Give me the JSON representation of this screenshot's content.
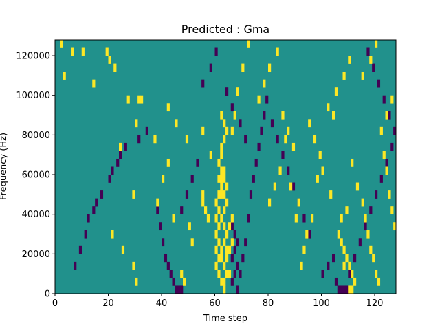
{
  "chart_data": {
    "type": "heatmap",
    "title": "Predicted : Gma",
    "xlabel": "Time step",
    "ylabel": "Frequency (Hz)",
    "xlim": [
      0,
      128
    ],
    "ylim": [
      0,
      128000
    ],
    "x_ticks": [
      0,
      20,
      40,
      60,
      80,
      100,
      120
    ],
    "y_ticks": [
      0,
      20000,
      40000,
      60000,
      80000,
      100000,
      120000
    ],
    "x_tick_labels": [
      "0",
      "20",
      "40",
      "60",
      "80",
      "100",
      "120"
    ],
    "y_tick_labels": [
      "0",
      "20000",
      "40000",
      "60000",
      "80000",
      "100000",
      "120000"
    ],
    "grid": false,
    "colormap": "viridis",
    "values_legend": {
      "low": -1,
      "mid": 0,
      "high": 1
    },
    "colors": {
      "low": "#440154",
      "mid": "#21918c",
      "high": "#fde725"
    },
    "grid_shape": {
      "time_bins": 128,
      "frequency_bins": 32,
      "bin_hz": 4000
    },
    "high_cells": [
      [
        2,
        31
      ],
      [
        10,
        30
      ],
      [
        19,
        30
      ],
      [
        27,
        24
      ],
      [
        31,
        24
      ],
      [
        32,
        24
      ],
      [
        37,
        19
      ],
      [
        42,
        23
      ],
      [
        42,
        16
      ],
      [
        49,
        19
      ],
      [
        20,
        29
      ],
      [
        30,
        21
      ],
      [
        45,
        21
      ],
      [
        55,
        20
      ],
      [
        58,
        17
      ],
      [
        55,
        11
      ],
      [
        44,
        9
      ],
      [
        38,
        11
      ],
      [
        22,
        28
      ],
      [
        3,
        27
      ],
      [
        6,
        30
      ],
      [
        14,
        26
      ],
      [
        24,
        18
      ],
      [
        29,
        12
      ],
      [
        40,
        14
      ],
      [
        50,
        8
      ],
      [
        51,
        6
      ],
      [
        47,
        2
      ],
      [
        48,
        1
      ],
      [
        30,
        1
      ],
      [
        29,
        3
      ],
      [
        25,
        5
      ],
      [
        21,
        7
      ],
      [
        62,
        17
      ],
      [
        63,
        15
      ],
      [
        64,
        13
      ],
      [
        60,
        11
      ],
      [
        61,
        10
      ],
      [
        60,
        9
      ],
      [
        61,
        8
      ],
      [
        60,
        7
      ],
      [
        61,
        6
      ],
      [
        60,
        5
      ],
      [
        61,
        4
      ],
      [
        60,
        3
      ],
      [
        61,
        2
      ],
      [
        62,
        1
      ],
      [
        63,
        0
      ],
      [
        62,
        5
      ],
      [
        63,
        6
      ],
      [
        64,
        7
      ],
      [
        63,
        8
      ],
      [
        62,
        9
      ],
      [
        63,
        10
      ],
      [
        64,
        11
      ],
      [
        61,
        12
      ],
      [
        62,
        12
      ],
      [
        63,
        12
      ],
      [
        62,
        13
      ],
      [
        61,
        14
      ],
      [
        62,
        14
      ],
      [
        63,
        14
      ],
      [
        62,
        15
      ],
      [
        61,
        16
      ],
      [
        62,
        18
      ],
      [
        63,
        19
      ],
      [
        64,
        20
      ],
      [
        63,
        21
      ],
      [
        62,
        22
      ],
      [
        62,
        4
      ],
      [
        63,
        3
      ],
      [
        64,
        2
      ],
      [
        63,
        1
      ],
      [
        65,
        5
      ],
      [
        65,
        8
      ],
      [
        66,
        6
      ],
      [
        66,
        9
      ],
      [
        64,
        4
      ],
      [
        64,
        5
      ],
      [
        65,
        2
      ],
      [
        55,
        12
      ],
      [
        56,
        10
      ],
      [
        57,
        9
      ],
      [
        66,
        20
      ],
      [
        67,
        22
      ],
      [
        68,
        25
      ],
      [
        70,
        28
      ],
      [
        72,
        31
      ],
      [
        80,
        11
      ],
      [
        82,
        13
      ],
      [
        84,
        15
      ],
      [
        86,
        19
      ],
      [
        88,
        13
      ],
      [
        90,
        9
      ],
      [
        91,
        11
      ],
      [
        92,
        3
      ],
      [
        93,
        5
      ],
      [
        94,
        7
      ],
      [
        96,
        9
      ],
      [
        98,
        14
      ],
      [
        100,
        15
      ],
      [
        103,
        12
      ],
      [
        105,
        25
      ],
      [
        108,
        27
      ],
      [
        110,
        29
      ],
      [
        111,
        16
      ],
      [
        113,
        13
      ],
      [
        115,
        11
      ],
      [
        116,
        9
      ],
      [
        117,
        7
      ],
      [
        118,
        5
      ],
      [
        119,
        4
      ],
      [
        120,
        2
      ],
      [
        121,
        1
      ],
      [
        106,
        7
      ],
      [
        107,
        6
      ],
      [
        108,
        5
      ],
      [
        109,
        4
      ],
      [
        110,
        3
      ],
      [
        111,
        2
      ],
      [
        112,
        1
      ],
      [
        107,
        9
      ],
      [
        109,
        10
      ],
      [
        110,
        0
      ],
      [
        111,
        0
      ],
      [
        108,
        3
      ],
      [
        85,
        22
      ],
      [
        87,
        20
      ],
      [
        89,
        18
      ],
      [
        76,
        24
      ],
      [
        78,
        26
      ],
      [
        80,
        28
      ],
      [
        83,
        30
      ],
      [
        95,
        21
      ],
      [
        97,
        19
      ],
      [
        99,
        17
      ],
      [
        102,
        23
      ],
      [
        104,
        22
      ],
      [
        123,
        17
      ],
      [
        124,
        15
      ],
      [
        125,
        12
      ],
      [
        126,
        10
      ],
      [
        127,
        8
      ],
      [
        122,
        20
      ],
      [
        124,
        22
      ],
      [
        126,
        24
      ],
      [
        115,
        27
      ],
      [
        118,
        29
      ],
      [
        120,
        31
      ]
    ],
    "low_cells": [
      [
        7,
        3
      ],
      [
        9,
        5
      ],
      [
        11,
        7
      ],
      [
        12,
        9
      ],
      [
        14,
        10
      ],
      [
        15,
        11
      ],
      [
        17,
        12
      ],
      [
        20,
        14
      ],
      [
        21,
        15
      ],
      [
        23,
        16
      ],
      [
        24,
        17
      ],
      [
        26,
        18
      ],
      [
        31,
        19
      ],
      [
        34,
        20
      ],
      [
        38,
        10
      ],
      [
        39,
        8
      ],
      [
        40,
        6
      ],
      [
        41,
        4
      ],
      [
        42,
        3
      ],
      [
        43,
        2
      ],
      [
        44,
        1
      ],
      [
        45,
        0
      ],
      [
        46,
        0
      ],
      [
        47,
        0
      ],
      [
        66,
        8
      ],
      [
        67,
        7
      ],
      [
        68,
        6
      ],
      [
        67,
        5
      ],
      [
        66,
        4
      ],
      [
        68,
        3
      ],
      [
        67,
        2
      ],
      [
        66,
        1
      ],
      [
        68,
        0
      ],
      [
        69,
        2
      ],
      [
        70,
        4
      ],
      [
        71,
        6
      ],
      [
        72,
        9
      ],
      [
        73,
        12
      ],
      [
        74,
        14
      ],
      [
        75,
        16
      ],
      [
        76,
        18
      ],
      [
        77,
        20
      ],
      [
        78,
        22
      ],
      [
        79,
        24
      ],
      [
        81,
        21
      ],
      [
        83,
        19
      ],
      [
        85,
        17
      ],
      [
        87,
        15
      ],
      [
        89,
        13
      ],
      [
        91,
        11
      ],
      [
        93,
        9
      ],
      [
        95,
        7
      ],
      [
        100,
        2
      ],
      [
        102,
        3
      ],
      [
        104,
        4
      ],
      [
        105,
        1
      ],
      [
        106,
        0
      ],
      [
        107,
        0
      ],
      [
        108,
        0
      ],
      [
        109,
        0
      ],
      [
        110,
        2
      ],
      [
        112,
        4
      ],
      [
        114,
        6
      ],
      [
        116,
        8
      ],
      [
        118,
        10
      ],
      [
        120,
        12
      ],
      [
        122,
        14
      ],
      [
        124,
        16
      ],
      [
        126,
        18
      ],
      [
        127,
        20
      ],
      [
        125,
        22
      ],
      [
        123,
        24
      ],
      [
        121,
        26
      ],
      [
        119,
        28
      ],
      [
        117,
        30
      ],
      [
        55,
        26
      ],
      [
        58,
        28
      ],
      [
        60,
        30
      ],
      [
        64,
        25
      ],
      [
        66,
        23
      ],
      [
        69,
        21
      ],
      [
        71,
        19
      ],
      [
        53,
        16
      ],
      [
        51,
        14
      ],
      [
        49,
        12
      ],
      [
        47,
        10
      ]
    ]
  }
}
